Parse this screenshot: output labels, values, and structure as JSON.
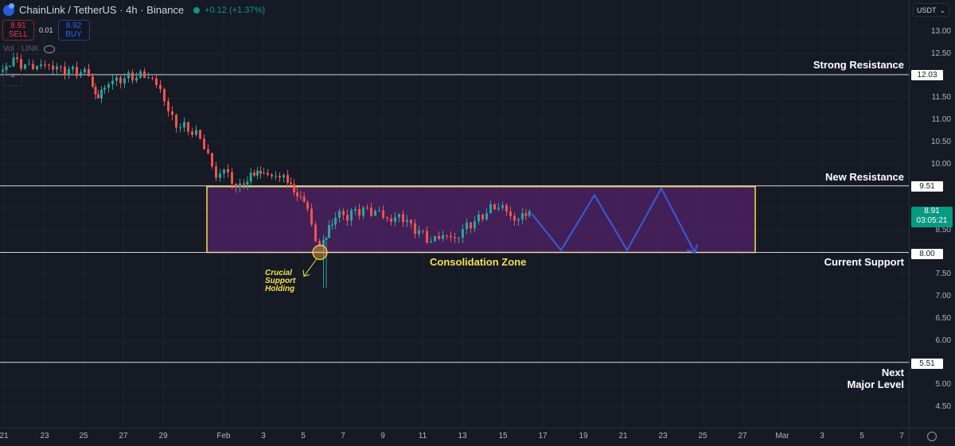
{
  "header": {
    "symbol": "ChainLink / TetherUS · 4h · Binance",
    "change": "+0.12 (+1.37%)",
    "sell_price": "8.91",
    "sell_label": "SELL",
    "spread": "0.01",
    "buy_price": "8.92",
    "buy_label": "BUY",
    "volume_label": "Vol · LINK"
  },
  "price_axis": {
    "currency": "USDT",
    "ticks": [
      "13.00",
      "12.50",
      "11.50",
      "11.00",
      "10.50",
      "10.00",
      "8.50",
      "7.50",
      "7.00",
      "6.50",
      "6.00",
      "5.00",
      "4.50"
    ],
    "current_price": "8.91",
    "countdown": "03:05:21"
  },
  "time_axis": {
    "ticks": [
      "21",
      "23",
      "25",
      "27",
      "29",
      "Feb",
      "3",
      "5",
      "7",
      "9",
      "11",
      "13",
      "15",
      "17",
      "19",
      "21",
      "23",
      "25",
      "27",
      "Mar",
      "3",
      "5",
      "7"
    ]
  },
  "annotations": {
    "strong_resistance": {
      "label": "Strong Resistance",
      "price": "12.03"
    },
    "new_resistance": {
      "label": "New Resistance",
      "price": "9.51"
    },
    "current_support": {
      "label": "Current Support",
      "price": "8.00"
    },
    "next_major_level": {
      "label_line1": "Next",
      "label_line2": "Major Level",
      "price": "5.51"
    },
    "zone_label": "Consolidation Zone",
    "crucial_line1": "Crucial",
    "crucial_line2": "Support",
    "crucial_line3": "Holding"
  },
  "colors": {
    "up": "#26a69a",
    "down": "#ef5350",
    "zone_fill": "#4a2260",
    "zone_border": "#f4e04d",
    "projection": "#3a5bd9",
    "level_line": "#d1d4dc"
  },
  "chart_data": {
    "type": "candlestick",
    "title": "ChainLink / TetherUS · 4h · Binance",
    "xlabel": "",
    "ylabel": "USDT",
    "ylim": [
      4.2,
      13.3
    ],
    "x_ticks": [
      "21",
      "23",
      "25",
      "27",
      "29",
      "Feb",
      "3",
      "5",
      "7",
      "9",
      "11",
      "13",
      "15",
      "17",
      "19",
      "21",
      "23",
      "25",
      "27",
      "Mar",
      "3",
      "5",
      "7"
    ],
    "levels": [
      {
        "name": "Strong Resistance",
        "value": 12.03
      },
      {
        "name": "New Resistance",
        "value": 9.51
      },
      {
        "name": "Current Support",
        "value": 8.0
      },
      {
        "name": "Next Major Level",
        "value": 5.51
      }
    ],
    "consolidation_zone": {
      "low": 8.0,
      "high": 9.51,
      "label": "Consolidation Zone"
    },
    "projection_path": [
      8.88,
      8.05,
      9.3,
      8.05,
      9.45,
      8.0
    ],
    "price_path_summary": [
      {
        "date": "Jan 21",
        "close": 12.2
      },
      {
        "date": "Jan 24",
        "close": 12.1
      },
      {
        "date": "Jan 25",
        "close": 11.5
      },
      {
        "date": "Jan 26",
        "close": 11.9
      },
      {
        "date": "Jan 29",
        "close": 12.0
      },
      {
        "date": "Jan 30",
        "close": 11.0
      },
      {
        "date": "Jan 31",
        "close": 10.8
      },
      {
        "date": "Feb 1",
        "close": 9.8
      },
      {
        "date": "Feb 2",
        "close": 9.5
      },
      {
        "date": "Feb 4",
        "close": 9.8
      },
      {
        "date": "Feb 5",
        "close": 9.0
      },
      {
        "date": "Feb 6",
        "close": 8.1,
        "low": 7.2
      },
      {
        "date": "Feb 7",
        "close": 8.9
      },
      {
        "date": "Feb 9",
        "close": 8.95
      },
      {
        "date": "Feb 11",
        "close": 8.2
      },
      {
        "date": "Feb 13",
        "close": 8.5
      },
      {
        "date": "Feb 15",
        "close": 9.2
      },
      {
        "date": "Feb 16",
        "close": 8.91
      }
    ],
    "current": {
      "price": 8.91,
      "change": 0.12,
      "change_pct": 1.37
    }
  }
}
